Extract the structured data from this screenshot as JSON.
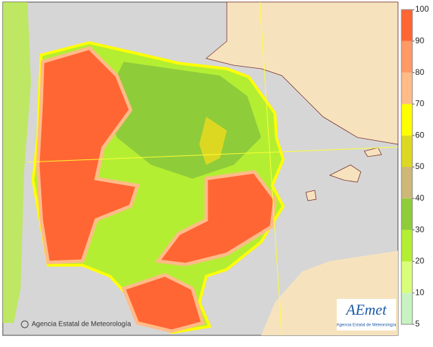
{
  "legend": {
    "ticks": [
      5,
      10,
      20,
      30,
      40,
      50,
      60,
      70,
      80,
      90,
      100
    ],
    "colors": [
      "#c8f2c2",
      "#d9ff7a",
      "#b4ee33",
      "#8fcc3a",
      "#cdb878",
      "#dcd822",
      "#ffff00",
      "#ffbb88",
      "#ff9a66",
      "#ff6633"
    ]
  },
  "credit": "Agencia Estatal de Meteorología",
  "logo": {
    "name": "AEmet",
    "subtitle": "Agencia Estatal de Meteorología"
  }
}
